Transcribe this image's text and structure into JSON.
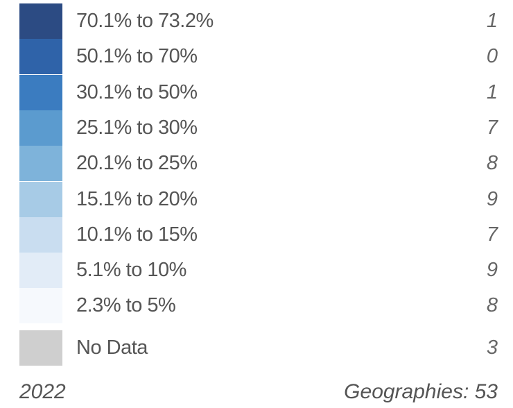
{
  "legend": {
    "rows": [
      {
        "label": "70.1% to 73.2%",
        "count": 1,
        "color": "#2c4b83"
      },
      {
        "label": "50.1% to 70%",
        "count": 0,
        "color": "#2f63a9"
      },
      {
        "label": "30.1% to 50%",
        "count": 1,
        "color": "#3b7cc0"
      },
      {
        "label": "25.1% to 30%",
        "count": 7,
        "color": "#5b9bcf"
      },
      {
        "label": "20.1% to 25%",
        "count": 8,
        "color": "#7eb3da"
      },
      {
        "label": "15.1% to 20%",
        "count": 9,
        "color": "#a7cbe6"
      },
      {
        "label": "10.1% to 15%",
        "count": 7,
        "color": "#c9ddf0"
      },
      {
        "label": "5.1% to 10%",
        "count": 9,
        "color": "#e2ecf7"
      },
      {
        "label": "2.3% to 5%",
        "count": 8,
        "color": "#f6f9fd"
      },
      {
        "label": "No Data",
        "count": 3,
        "color": "#cfcfcf"
      }
    ],
    "year": "2022",
    "geographies": "Geographies: 53"
  }
}
